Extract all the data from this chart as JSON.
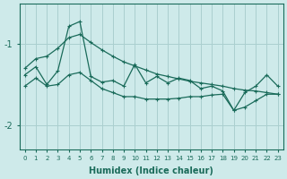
{
  "xlabel": "Humidex (Indice chaleur)",
  "ylabel": "",
  "bg_color": "#ceeaea",
  "grid_color": "#aacfcf",
  "line_color": "#1a6b5a",
  "x": [
    0,
    1,
    2,
    3,
    4,
    5,
    6,
    7,
    8,
    9,
    10,
    11,
    12,
    13,
    14,
    15,
    16,
    17,
    18,
    19,
    20,
    21,
    22,
    23
  ],
  "y_main": [
    -1.38,
    -1.28,
    -1.5,
    -1.33,
    -0.78,
    -0.72,
    -1.4,
    -1.47,
    -1.45,
    -1.52,
    -1.25,
    -1.48,
    -1.4,
    -1.48,
    -1.42,
    -1.45,
    -1.55,
    -1.52,
    -1.58,
    -1.82,
    -1.6,
    -1.52,
    -1.38,
    -1.52
  ],
  "y_upper": [
    -1.3,
    -1.18,
    -1.15,
    -1.05,
    -0.92,
    -0.88,
    -0.98,
    -1.07,
    -1.15,
    -1.22,
    -1.27,
    -1.32,
    -1.37,
    -1.4,
    -1.43,
    -1.46,
    -1.48,
    -1.5,
    -1.52,
    -1.55,
    -1.57,
    -1.58,
    -1.6,
    -1.62
  ],
  "y_lower": [
    -1.52,
    -1.42,
    -1.52,
    -1.5,
    -1.38,
    -1.35,
    -1.45,
    -1.55,
    -1.6,
    -1.65,
    -1.65,
    -1.68,
    -1.68,
    -1.68,
    -1.67,
    -1.65,
    -1.65,
    -1.63,
    -1.62,
    -1.82,
    -1.78,
    -1.7,
    -1.62,
    -1.62
  ],
  "yticks": [
    -1.0,
    -2.0
  ],
  "ylim": [
    -2.3,
    -0.5
  ],
  "xlim": [
    -0.5,
    23.5
  ]
}
